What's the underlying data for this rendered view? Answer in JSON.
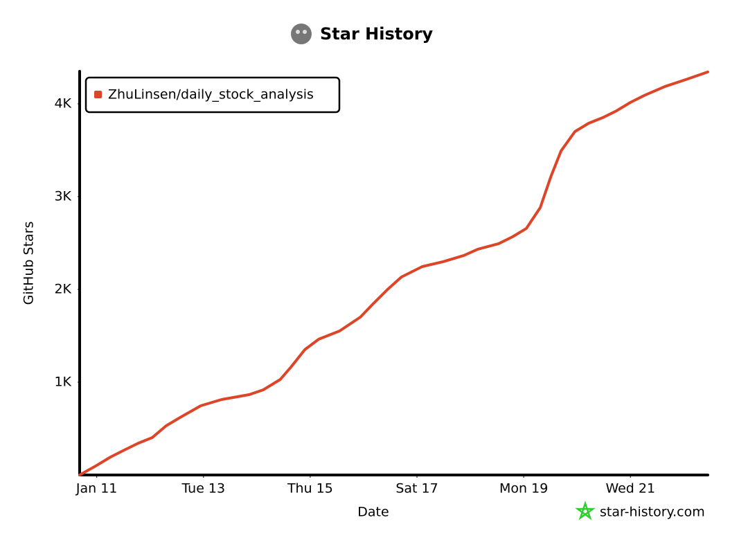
{
  "chart_data": {
    "type": "line",
    "title": "Star History",
    "x_label": "Date",
    "y_label": "GitHub Stars",
    "watermark": "star-history.com",
    "x": [
      10.68,
      11,
      11.26,
      11.52,
      11.78,
      12.04,
      12.3,
      12.56,
      12.95,
      13.34,
      13.86,
      14.12,
      14.44,
      14.64,
      14.9,
      15.16,
      15.55,
      15.94,
      16.19,
      16.45,
      16.71,
      17.1,
      17.49,
      17.88,
      18.14,
      18.53,
      18.79,
      19.05,
      19.31,
      19.51,
      19.7,
      19.96,
      20.22,
      20.48,
      20.74,
      21,
      21.26,
      21.65,
      22.04,
      22.45
    ],
    "series": [
      {
        "name": "ZhuLinsen/daily_stock_analysis",
        "color": "#dd4528",
        "values": [
          0,
          104,
          194,
          269,
          343,
          403,
          530,
          619,
          746,
          813,
          866,
          918,
          1030,
          1164,
          1351,
          1463,
          1552,
          1701,
          1851,
          2000,
          2134,
          2246,
          2299,
          2366,
          2433,
          2493,
          2567,
          2657,
          2881,
          3216,
          3493,
          3701,
          3791,
          3851,
          3925,
          4015,
          4090,
          4187,
          4261,
          4343
        ]
      }
    ],
    "xlim": [
      10.68,
      22.45
    ],
    "xticks": [
      {
        "value": 11,
        "label": "Jan 11"
      },
      {
        "value": 13,
        "label": "Tue 13"
      },
      {
        "value": 15,
        "label": "Thu 15"
      },
      {
        "value": 17,
        "label": "Sat 17"
      },
      {
        "value": 19,
        "label": "Mon 19"
      },
      {
        "value": 21,
        "label": "Wed 21"
      }
    ],
    "ylim": [
      0,
      4350
    ],
    "yticks": [
      {
        "value": 1000,
        "label": "1K"
      },
      {
        "value": 2000,
        "label": "2K"
      },
      {
        "value": 3000,
        "label": "3K"
      },
      {
        "value": 4000,
        "label": "4K"
      }
    ],
    "legend": "top-left"
  }
}
